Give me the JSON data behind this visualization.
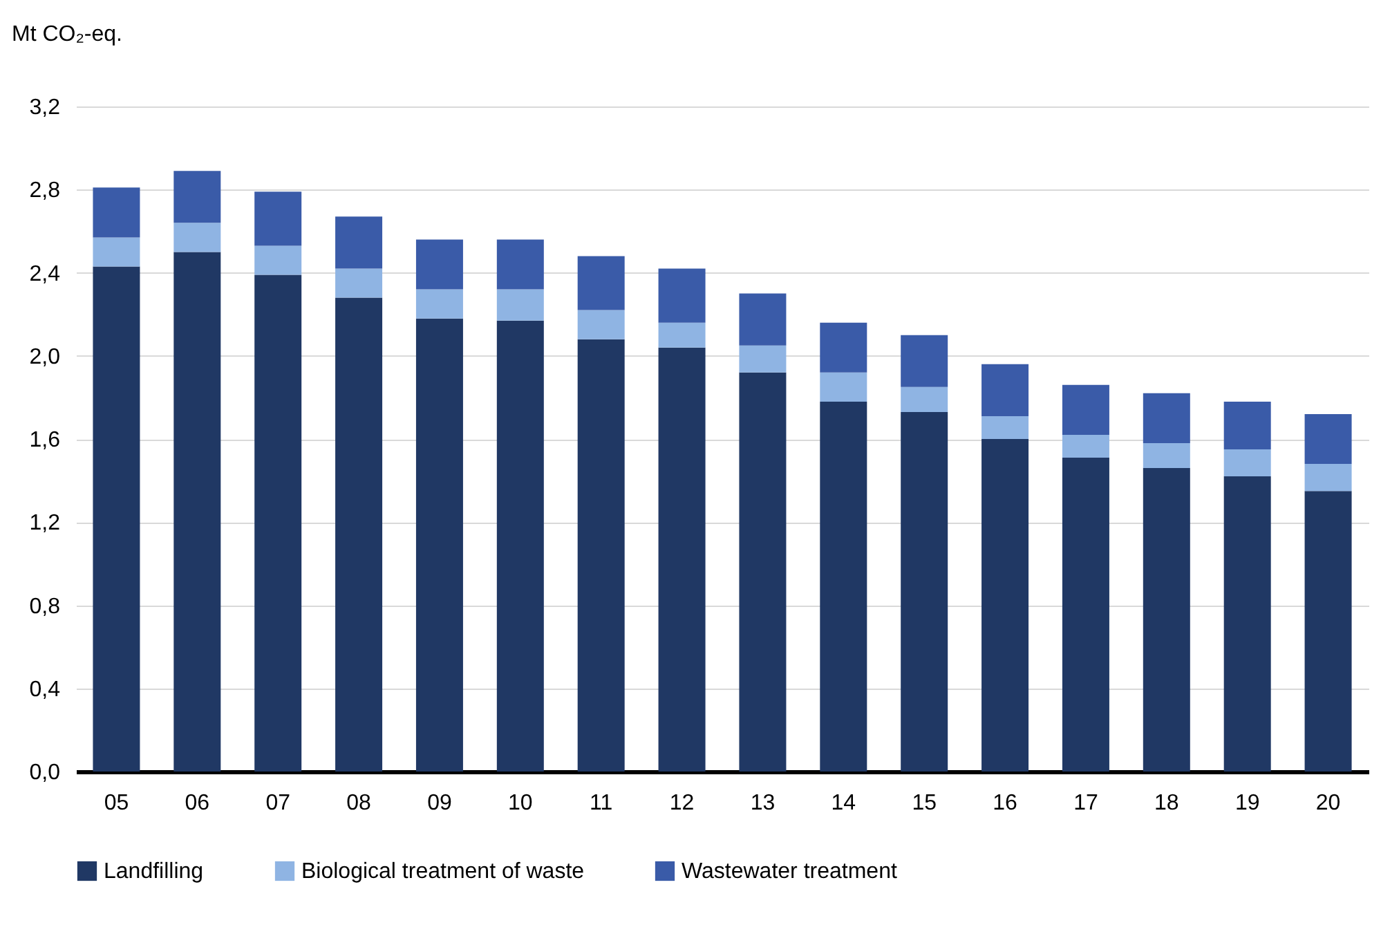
{
  "chart_data": {
    "type": "bar",
    "stacked": true,
    "ylabel": "Mt CO₂-eq.",
    "categories": [
      "05",
      "06",
      "07",
      "08",
      "09",
      "10",
      "11",
      "12",
      "13",
      "14",
      "15",
      "16",
      "17",
      "18",
      "19",
      "20"
    ],
    "series": [
      {
        "name": "Landfilling",
        "color": "#203864",
        "values": [
          2.43,
          2.5,
          2.39,
          2.28,
          2.18,
          2.17,
          2.08,
          2.04,
          1.92,
          1.78,
          1.73,
          1.6,
          1.51,
          1.46,
          1.42,
          1.35
        ]
      },
      {
        "name": "Biological treatment of waste",
        "color": "#8fb4e3",
        "values": [
          0.14,
          0.14,
          0.14,
          0.14,
          0.14,
          0.15,
          0.14,
          0.12,
          0.13,
          0.14,
          0.12,
          0.11,
          0.11,
          0.12,
          0.13,
          0.13
        ]
      },
      {
        "name": "Wastewater treatment",
        "color": "#3a5ba8",
        "values": [
          0.24,
          0.25,
          0.26,
          0.25,
          0.24,
          0.24,
          0.26,
          0.26,
          0.25,
          0.24,
          0.25,
          0.25,
          0.24,
          0.24,
          0.23,
          0.24
        ]
      }
    ],
    "ylim": [
      0,
      3.2
    ],
    "yticks": [
      {
        "value": 0,
        "label": "0,0"
      },
      {
        "value": 0.4,
        "label": "0,4"
      },
      {
        "value": 0.8,
        "label": "0,8"
      },
      {
        "value": 1.2,
        "label": "1,2"
      },
      {
        "value": 1.6,
        "label": "1,6"
      },
      {
        "value": 2.0,
        "label": "2,0"
      },
      {
        "value": 2.4,
        "label": "2,4"
      },
      {
        "value": 2.8,
        "label": "2,8"
      },
      {
        "value": 3.2,
        "label": "3,2"
      }
    ],
    "grid": "y",
    "legend": "bottom"
  }
}
